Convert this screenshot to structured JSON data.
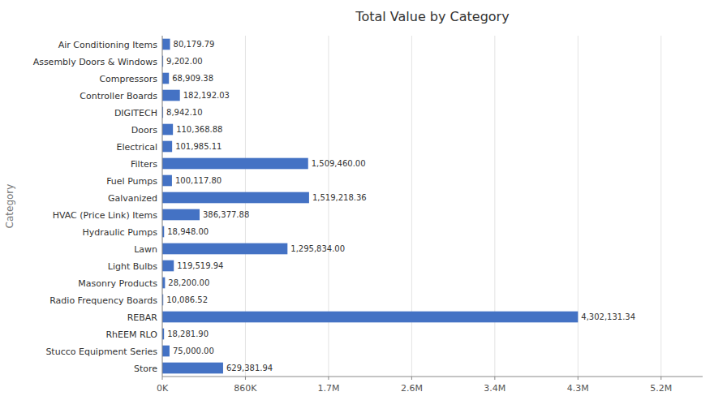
{
  "chart_data": {
    "type": "bar",
    "orientation": "horizontal",
    "title": "Total Value by Category",
    "y_label": "Category",
    "categories": [
      "Air Conditioning Items",
      "Assembly Doors & Windows",
      "Compressors",
      "Controller Boards",
      "DIGITECH",
      "Doors",
      "Electrical",
      "Filters",
      "Fuel Pumps",
      "Galvanized",
      "HVAC (Price Link) Items",
      "Hydraulic Pumps",
      "Lawn",
      "Light Bulbs",
      "Masonry Products",
      "Radio Frequency Boards",
      "REBAR",
      "RhEEM RLO",
      "Stucco Equipment Series",
      "Store"
    ],
    "values": [
      80179.79,
      9202.0,
      68909.38,
      182192.03,
      8942.1,
      110368.88,
      101985.11,
      1509460.0,
      100117.8,
      1519218.36,
      386377.88,
      18948.0,
      1295834.0,
      119519.94,
      28200.0,
      10086.52,
      4302131.34,
      18281.9,
      75000.0,
      629381.94
    ],
    "value_labels": [
      "80,179.79",
      "9,202.00",
      "68,909.38",
      "182,192.03",
      "8,942.10",
      "110,368.88",
      "101,985.11",
      "1,509,460.00",
      "100,117.80",
      "1,519,218.36",
      "386,377.88",
      "18,948.00",
      "1,295,834.00",
      "119,519.94",
      "28,200.00",
      "10,086.52",
      "4,302,131.34",
      "18,281.90",
      "75,000.00",
      "629,381.94"
    ],
    "data_labels": true,
    "color": "#4472c4",
    "xlim": [
      0,
      5592770.742
    ],
    "xticks": [
      {
        "value": 0,
        "label": "0K"
      },
      {
        "value": 860426.268,
        "label": "860K"
      },
      {
        "value": 1720852.536,
        "label": "1.7M"
      },
      {
        "value": 2581278.804,
        "label": "2.6M"
      },
      {
        "value": 3441705.072,
        "label": "3.4M"
      },
      {
        "value": 4302131.34,
        "label": "4.3M"
      },
      {
        "value": 5162557.608,
        "label": "5.2M"
      }
    ],
    "grid": true
  }
}
